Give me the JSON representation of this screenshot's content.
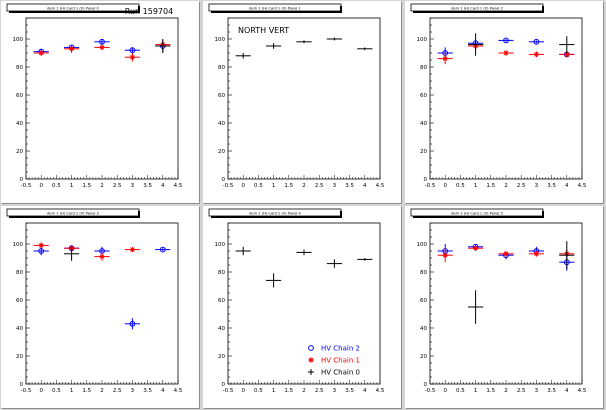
{
  "page": {
    "run_label": "Run 159704",
    "legend": [
      {
        "label": "HV Chain 2",
        "color": "#0000ff",
        "marker": "open-circle"
      },
      {
        "label": "HV Chain 1",
        "color": "#ff0000",
        "marker": "star"
      },
      {
        "label": "HV Chain 0",
        "color": "#000000",
        "marker": "plus"
      }
    ]
  },
  "chart_data": [
    {
      "type": "scatter",
      "panel_title": "dem 1 (H) Card 1 (V) Panel 0",
      "annotation": "",
      "xlim": [
        -0.5,
        4.5
      ],
      "ylim": [
        0,
        115
      ],
      "xticks": [
        -0.5,
        0,
        0.5,
        1,
        1.5,
        2,
        2.5,
        3,
        3.5,
        4,
        4.5
      ],
      "yticks": [
        0,
        20,
        40,
        60,
        80,
        100
      ],
      "series": [
        {
          "color": "#0000ff",
          "marker": "open-circle",
          "points": [
            [
              0,
              91,
              2
            ],
            [
              1,
              94,
              2
            ],
            [
              2,
              98,
              2
            ],
            [
              3,
              92,
              2
            ],
            [
              4,
              95,
              4
            ]
          ]
        },
        {
          "color": "#ff0000",
          "marker": "star",
          "points": [
            [
              0,
              90,
              2
            ],
            [
              1,
              93,
              3
            ],
            [
              2,
              94,
              2
            ],
            [
              3,
              87,
              3
            ],
            [
              4,
              96,
              3
            ]
          ]
        },
        {
          "color": "#000000",
          "marker": "plus",
          "points": [
            [
              4,
              95,
              5
            ]
          ]
        }
      ]
    },
    {
      "type": "scatter",
      "panel_title": "dem 1 (H) Card 1 (V) Panel 1",
      "annotation": "NORTH VERT",
      "xlim": [
        -0.5,
        4.5
      ],
      "ylim": [
        0,
        115
      ],
      "xticks": [
        -0.5,
        0,
        0.5,
        1,
        1.5,
        2,
        2.5,
        3,
        3.5,
        4,
        4.5
      ],
      "yticks": [
        0,
        20,
        40,
        60,
        80,
        100
      ],
      "series": [
        {
          "color": "#000000",
          "marker": "plus",
          "points": [
            [
              0,
              88,
              2
            ],
            [
              1,
              95,
              2
            ],
            [
              2,
              98,
              1
            ],
            [
              3,
              100,
              1
            ],
            [
              4,
              93,
              1
            ]
          ]
        }
      ]
    },
    {
      "type": "scatter",
      "panel_title": "dem 1 (H) Card 1 (V) Panel 2",
      "annotation": "",
      "xlim": [
        -0.5,
        4.5
      ],
      "ylim": [
        0,
        115
      ],
      "xticks": [
        -0.5,
        0,
        0.5,
        1,
        1.5,
        2,
        2.5,
        3,
        3.5,
        4,
        4.5
      ],
      "yticks": [
        0,
        20,
        40,
        60,
        80,
        100
      ],
      "series": [
        {
          "color": "#0000ff",
          "marker": "open-circle",
          "points": [
            [
              0,
              90,
              4
            ],
            [
              1,
              97,
              2
            ],
            [
              2,
              99,
              1
            ],
            [
              3,
              98,
              1
            ],
            [
              4,
              89,
              2
            ]
          ]
        },
        {
          "color": "#ff0000",
          "marker": "star",
          "points": [
            [
              0,
              86,
              4
            ],
            [
              1,
              95,
              3
            ],
            [
              2,
              90,
              2
            ],
            [
              3,
              89,
              2
            ],
            [
              4,
              89,
              2
            ]
          ]
        },
        {
          "color": "#000000",
          "marker": "plus",
          "points": [
            [
              1,
              96,
              8
            ],
            [
              4,
              96,
              6
            ]
          ]
        }
      ]
    },
    {
      "type": "scatter",
      "panel_title": "dem 1 (H) Card 1 (V) Panel 3",
      "annotation": "",
      "xlim": [
        -0.5,
        4.5
      ],
      "ylim": [
        0,
        115
      ],
      "xticks": [
        -0.5,
        0,
        0.5,
        1,
        1.5,
        2,
        2.5,
        3,
        3.5,
        4,
        4.5
      ],
      "yticks": [
        0,
        20,
        40,
        60,
        80,
        100
      ],
      "series": [
        {
          "color": "#0000ff",
          "marker": "open-circle",
          "points": [
            [
              0,
              95,
              3
            ],
            [
              1,
              97,
              2
            ],
            [
              2,
              95,
              3
            ],
            [
              3,
              43,
              4
            ],
            [
              4,
              96,
              1
            ]
          ]
        },
        {
          "color": "#ff0000",
          "marker": "star",
          "points": [
            [
              0,
              99,
              2
            ],
            [
              1,
              97,
              2
            ],
            [
              2,
              91,
              3
            ],
            [
              3,
              96,
              1
            ]
          ]
        },
        {
          "color": "#000000",
          "marker": "plus",
          "points": [
            [
              1,
              93,
              5
            ]
          ]
        }
      ]
    },
    {
      "type": "scatter",
      "panel_title": "dem 1 (H) Card 1 (V) Panel 4",
      "annotation": "",
      "xlim": [
        -0.5,
        4.5
      ],
      "ylim": [
        0,
        115
      ],
      "xticks": [
        -0.5,
        0,
        0.5,
        1,
        1.5,
        2,
        2.5,
        3,
        3.5,
        4,
        4.5
      ],
      "yticks": [
        0,
        20,
        40,
        60,
        80,
        100
      ],
      "series": [
        {
          "color": "#000000",
          "marker": "plus",
          "points": [
            [
              0,
              95,
              3
            ],
            [
              1,
              74,
              5
            ],
            [
              2,
              94,
              2
            ],
            [
              3,
              86,
              3
            ],
            [
              4,
              89,
              1
            ]
          ]
        }
      ]
    },
    {
      "type": "scatter",
      "panel_title": "dem 1 (H) Card 1 (V) Panel 5",
      "annotation": "",
      "xlim": [
        -0.5,
        4.5
      ],
      "ylim": [
        0,
        115
      ],
      "xticks": [
        -0.5,
        0,
        0.5,
        1,
        1.5,
        2,
        2.5,
        3,
        3.5,
        4,
        4.5
      ],
      "yticks": [
        0,
        20,
        40,
        60,
        80,
        100
      ],
      "series": [
        {
          "color": "#0000ff",
          "marker": "open-circle",
          "points": [
            [
              0,
              95,
              5
            ],
            [
              1,
              98,
              2
            ],
            [
              2,
              92,
              3
            ],
            [
              3,
              95,
              3
            ],
            [
              4,
              87,
              6
            ]
          ]
        },
        {
          "color": "#ff0000",
          "marker": "star",
          "points": [
            [
              0,
              92,
              5
            ],
            [
              1,
              97,
              2
            ],
            [
              2,
              93,
              2
            ],
            [
              3,
              93,
              2
            ],
            [
              4,
              93,
              3
            ]
          ]
        },
        {
          "color": "#000000",
          "marker": "plus",
          "points": [
            [
              1,
              55,
              12
            ],
            [
              4,
              92,
              10
            ]
          ]
        }
      ]
    }
  ]
}
